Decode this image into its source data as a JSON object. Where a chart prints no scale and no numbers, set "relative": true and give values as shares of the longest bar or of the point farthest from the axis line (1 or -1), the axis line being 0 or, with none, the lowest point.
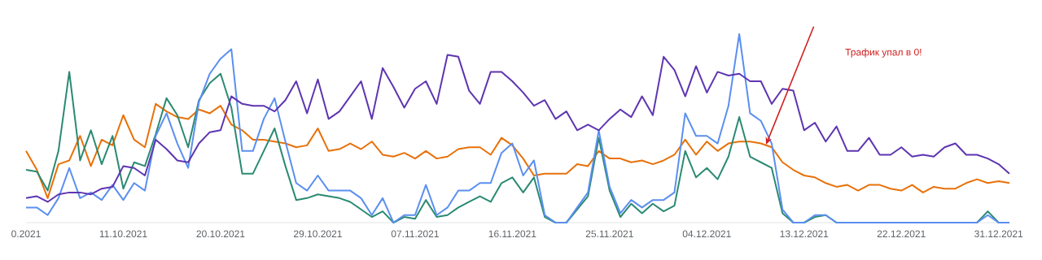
{
  "chart_data": {
    "type": "line",
    "relative": true,
    "x": [
      "2021-10-02",
      "2021-10-03",
      "2021-10-04",
      "2021-10-05",
      "2021-10-06",
      "2021-10-07",
      "2021-10-08",
      "2021-10-09",
      "2021-10-10",
      "2021-10-11",
      "2021-10-12",
      "2021-10-13",
      "2021-10-14",
      "2021-10-15",
      "2021-10-16",
      "2021-10-17",
      "2021-10-18",
      "2021-10-19",
      "2021-10-20",
      "2021-10-21",
      "2021-10-22",
      "2021-10-23",
      "2021-10-24",
      "2021-10-25",
      "2021-10-26",
      "2021-10-27",
      "2021-10-28",
      "2021-10-29",
      "2021-10-30",
      "2021-10-31",
      "2021-11-01",
      "2021-11-02",
      "2021-11-03",
      "2021-11-04",
      "2021-11-05",
      "2021-11-06",
      "2021-11-07",
      "2021-11-08",
      "2021-11-09",
      "2021-11-10",
      "2021-11-11",
      "2021-11-12",
      "2021-11-13",
      "2021-11-14",
      "2021-11-15",
      "2021-11-16",
      "2021-11-17",
      "2021-11-18",
      "2021-11-19",
      "2021-11-20",
      "2021-11-21",
      "2021-11-22",
      "2021-11-23",
      "2021-11-24",
      "2021-11-25",
      "2021-11-26",
      "2021-11-27",
      "2021-11-28",
      "2021-11-29",
      "2021-11-30",
      "2021-12-01",
      "2021-12-02",
      "2021-12-03",
      "2021-12-04",
      "2021-12-05",
      "2021-12-06",
      "2021-12-07",
      "2021-12-08",
      "2021-12-09",
      "2021-12-10",
      "2021-12-11",
      "2021-12-12",
      "2021-12-13",
      "2021-12-14",
      "2021-12-15",
      "2021-12-16",
      "2021-12-17",
      "2021-12-18",
      "2021-12-19",
      "2021-12-20",
      "2021-12-21",
      "2021-12-22",
      "2021-12-23",
      "2021-12-24",
      "2021-12-25",
      "2021-12-26",
      "2021-12-27",
      "2021-12-28",
      "2021-12-29",
      "2021-12-30",
      "2021-12-31",
      "2022-01-01"
    ],
    "xlim": [
      "2021-10-02",
      "2022-01-01"
    ],
    "xticks": [
      {
        "value": "2021-10-02",
        "label": "0.2021"
      },
      {
        "value": "2021-10-11",
        "label": "11.10.2021"
      },
      {
        "value": "2021-10-20",
        "label": "20.10.2021"
      },
      {
        "value": "2021-10-29",
        "label": "29.10.2021"
      },
      {
        "value": "2021-11-07",
        "label": "07.11.2021"
      },
      {
        "value": "2021-11-16",
        "label": "16.11.2021"
      },
      {
        "value": "2021-11-25",
        "label": "25.11.2021"
      },
      {
        "value": "2021-12-04",
        "label": "04.12.2021"
      },
      {
        "value": "2021-12-13",
        "label": "13.12.2021"
      },
      {
        "value": "2021-12-22",
        "label": "22.12.2021"
      },
      {
        "value": "2021-12-31",
        "label": "31.12.2021"
      }
    ],
    "series": [
      {
        "color": "#e8710a",
        "values": [
          0.38,
          0.28,
          0.13,
          0.31,
          0.33,
          0.46,
          0.3,
          0.44,
          0.41,
          0.57,
          0.44,
          0.4,
          0.63,
          0.59,
          0.56,
          0.55,
          0.6,
          0.58,
          0.62,
          0.52,
          0.49,
          0.44,
          0.44,
          0.43,
          0.42,
          0.4,
          0.41,
          0.5,
          0.38,
          0.39,
          0.42,
          0.39,
          0.43,
          0.36,
          0.35,
          0.37,
          0.34,
          0.38,
          0.34,
          0.35,
          0.39,
          0.4,
          0.4,
          0.36,
          0.45,
          0.41,
          0.34,
          0.25,
          0.26,
          0.26,
          0.26,
          0.31,
          0.3,
          0.38,
          0.34,
          0.34,
          0.32,
          0.33,
          0.31,
          0.33,
          0.36,
          0.44,
          0.36,
          0.43,
          0.38,
          0.42,
          0.43,
          0.43,
          0.42,
          0.4,
          0.32,
          0.28,
          0.25,
          0.24,
          0.21,
          0.19,
          0.2,
          0.17,
          0.2,
          0.2,
          0.18,
          0.17,
          0.2,
          0.16,
          0.19,
          0.18,
          0.18,
          0.21,
          0.23,
          0.21,
          0.22,
          0.21
        ]
      },
      {
        "color": "#2b8a72",
        "values": [
          0.28,
          0.27,
          0.17,
          0.38,
          0.8,
          0.33,
          0.49,
          0.31,
          0.46,
          0.18,
          0.32,
          0.3,
          0.47,
          0.66,
          0.57,
          0.4,
          0.65,
          0.74,
          0.79,
          0.61,
          0.26,
          0.26,
          0.38,
          0.5,
          0.3,
          0.12,
          0.13,
          0.15,
          0.14,
          0.13,
          0.11,
          0.07,
          0.03,
          0.06,
          0,
          0.03,
          0.02,
          0.12,
          0.03,
          0.04,
          0.08,
          0.11,
          0.14,
          0.11,
          0.21,
          0.24,
          0.16,
          0.24,
          0.03,
          0,
          0,
          0.07,
          0.14,
          0.45,
          0.17,
          0.03,
          0.1,
          0.05,
          0.1,
          0.06,
          0.09,
          0.38,
          0.24,
          0.29,
          0.23,
          0.35,
          0.56,
          0.35,
          0.32,
          0.29,
          0.05,
          0,
          0,
          0.03,
          0.04,
          0,
          0,
          0,
          0,
          0,
          0,
          0,
          0,
          0,
          0,
          0,
          0,
          0,
          0,
          0.06,
          0,
          0
        ]
      },
      {
        "color": "#5b8ff0",
        "values": [
          0.08,
          0.08,
          0.04,
          0.13,
          0.29,
          0.13,
          0.16,
          0.12,
          0.2,
          0.12,
          0.21,
          0.17,
          0.46,
          0.58,
          0.42,
          0.29,
          0.64,
          0.79,
          0.87,
          0.92,
          0.38,
          0.38,
          0.55,
          0.66,
          0.43,
          0.21,
          0.17,
          0.25,
          0.17,
          0.17,
          0.17,
          0.13,
          0.04,
          0.13,
          0,
          0.04,
          0.04,
          0.2,
          0.04,
          0.08,
          0.17,
          0.17,
          0.21,
          0.21,
          0.37,
          0.42,
          0.25,
          0.33,
          0.04,
          0,
          0,
          0.08,
          0.16,
          0.49,
          0.19,
          0.05,
          0.12,
          0.08,
          0.12,
          0.12,
          0.16,
          0.58,
          0.46,
          0.46,
          0.42,
          0.62,
          1,
          0.58,
          0.54,
          0.42,
          0.07,
          0,
          0,
          0.04,
          0.04,
          0,
          0,
          0,
          0,
          0,
          0,
          0,
          0,
          0,
          0,
          0,
          0,
          0,
          0,
          0.04,
          0,
          0
        ]
      },
      {
        "color": "#5e35b1",
        "values": [
          0.13,
          0.14,
          0.11,
          0.15,
          0.16,
          0.16,
          0.15,
          0.18,
          0.19,
          0.3,
          0.29,
          0.25,
          0.44,
          0.39,
          0.33,
          0.32,
          0.42,
          0.48,
          0.49,
          0.67,
          0.63,
          0.62,
          0.62,
          0.59,
          0.65,
          0.75,
          0.58,
          0.76,
          0.55,
          0.59,
          0.67,
          0.75,
          0.55,
          0.82,
          0.72,
          0.61,
          0.71,
          0.75,
          0.63,
          0.89,
          0.88,
          0.7,
          0.63,
          0.8,
          0.8,
          0.75,
          0.69,
          0.62,
          0.65,
          0.55,
          0.59,
          0.49,
          0.52,
          0.49,
          0.55,
          0.6,
          0.56,
          0.67,
          0.57,
          0.88,
          0.81,
          0.67,
          0.83,
          0.69,
          0.8,
          0.78,
          0.79,
          0.75,
          0.75,
          0.63,
          0.71,
          0.7,
          0.49,
          0.53,
          0.43,
          0.51,
          0.38,
          0.38,
          0.45,
          0.36,
          0.36,
          0.4,
          0.35,
          0.36,
          0.35,
          0.4,
          0.42,
          0.36,
          0.36,
          0.34,
          0.31,
          0.26
        ]
      }
    ],
    "annotations": [
      "Трафик упал в 0!"
    ]
  }
}
